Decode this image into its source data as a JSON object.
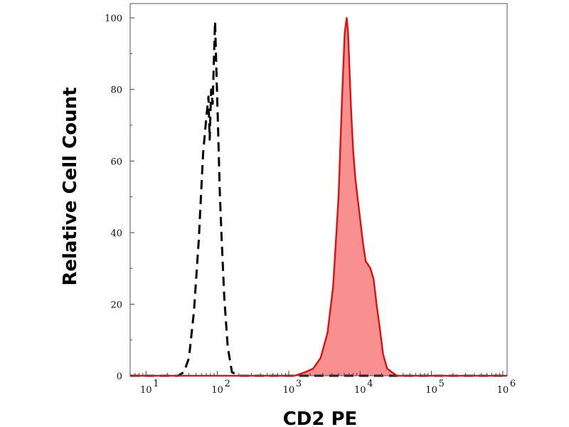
{
  "chart_data": {
    "type": "area",
    "xlabel": "CD2 PE",
    "ylabel": "Relative Cell Count",
    "x_scale": "log",
    "xlim": [
      6,
      1150000.0
    ],
    "ylim": [
      0,
      104
    ],
    "x_ticks": [
      {
        "value": 10,
        "base": "10",
        "exp": "1"
      },
      {
        "value": 100,
        "base": "10",
        "exp": "2"
      },
      {
        "value": 1000,
        "base": "10",
        "exp": "3"
      },
      {
        "value": 10000,
        "base": "10",
        "exp": "4"
      },
      {
        "value": 100000,
        "base": "10",
        "exp": "5"
      },
      {
        "value": 1000000,
        "base": "10",
        "exp": "6"
      }
    ],
    "y_ticks": [
      0,
      20,
      40,
      60,
      80,
      100
    ],
    "series": [
      {
        "style": "dashed",
        "color": "#000000",
        "fill": "none",
        "x": [
          6,
          20,
          28,
          34,
          40,
          47,
          55,
          63,
          70,
          75,
          78,
          82,
          86,
          90,
          93,
          97,
          102,
          108,
          115,
          125,
          140,
          160,
          200,
          300,
          1150000.0
        ],
        "y": [
          0,
          0,
          0,
          1,
          5,
          18,
          38,
          62,
          72,
          78,
          66,
          80,
          76,
          90,
          99,
          85,
          70,
          52,
          38,
          22,
          8,
          1,
          0,
          0,
          0
        ]
      },
      {
        "style": "solid",
        "color": "#dd1111",
        "fill": "#f99090",
        "x": [
          6,
          1200,
          1700,
          2200,
          2800,
          3500,
          4200,
          5000,
          5600,
          6100,
          6500,
          6800,
          7100,
          7500,
          8000,
          8600,
          9200,
          10000,
          11000,
          12000,
          13000,
          14000,
          15500,
          17000,
          19000,
          21000,
          24000,
          28000,
          33000,
          40000,
          1150000.0
        ],
        "y": [
          0,
          0,
          1,
          2,
          5,
          12,
          25,
          50,
          78,
          96,
          100,
          96,
          86,
          74,
          63,
          55,
          50,
          44,
          37,
          32,
          31,
          30,
          27,
          20,
          13,
          6,
          2,
          1,
          0,
          0,
          0
        ]
      }
    ]
  }
}
